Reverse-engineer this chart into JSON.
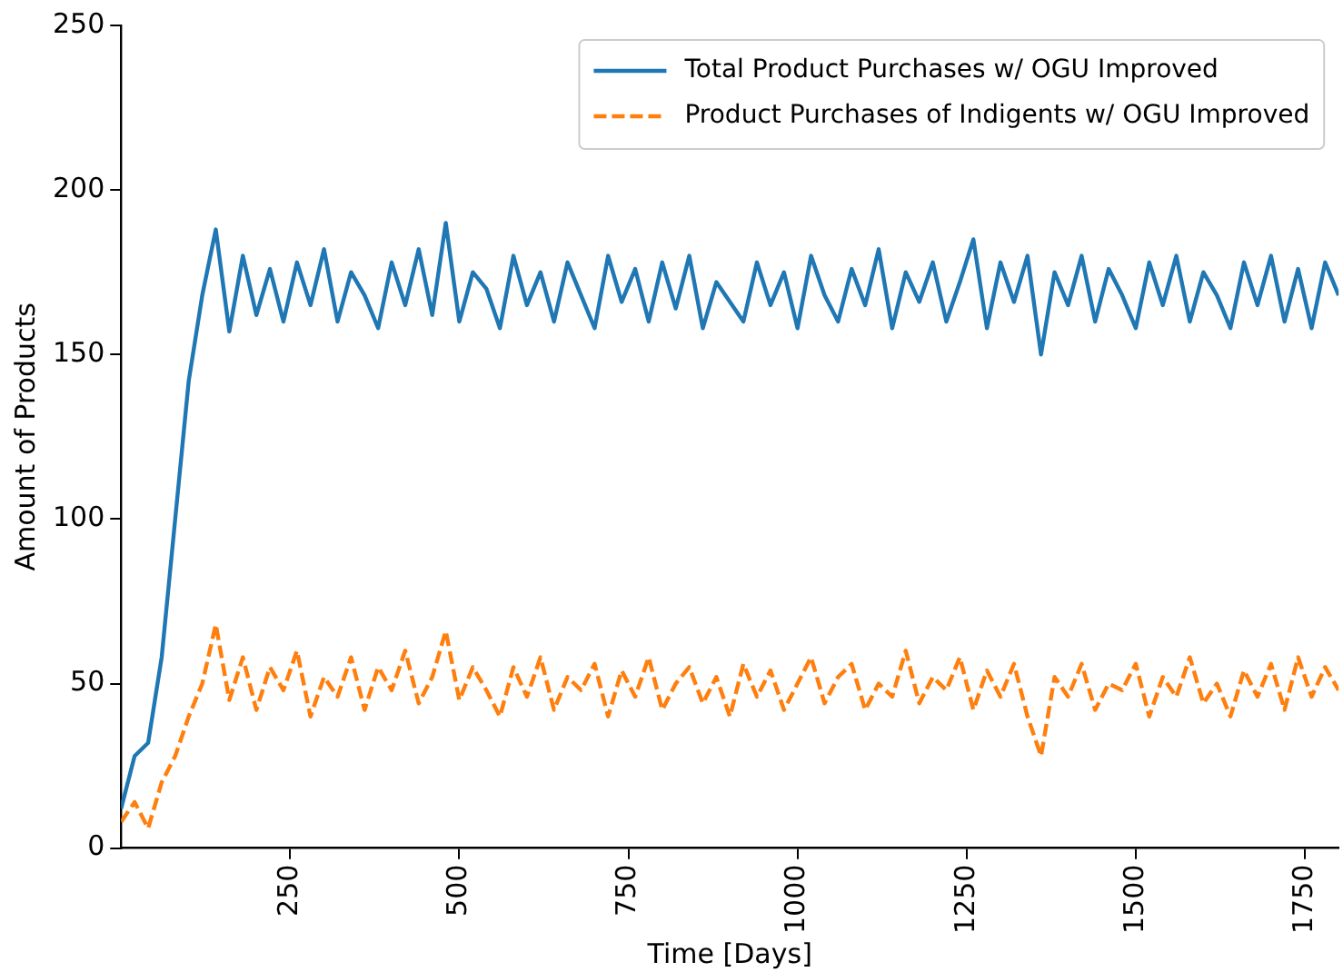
{
  "chart_data": {
    "type": "line",
    "xlabel": "Time [Days]",
    "ylabel": "Amount of Products",
    "x": [
      0,
      20,
      40,
      60,
      80,
      100,
      120,
      140,
      160,
      180,
      200,
      220,
      240,
      260,
      280,
      300,
      320,
      340,
      360,
      380,
      400,
      420,
      440,
      460,
      480,
      500,
      520,
      540,
      560,
      580,
      600,
      620,
      640,
      660,
      680,
      700,
      720,
      740,
      760,
      780,
      800,
      820,
      840,
      860,
      880,
      900,
      920,
      940,
      960,
      980,
      1000,
      1020,
      1040,
      1060,
      1080,
      1100,
      1120,
      1140,
      1160,
      1180,
      1200,
      1220,
      1240,
      1260,
      1280,
      1300,
      1320,
      1340,
      1360,
      1380,
      1400,
      1420,
      1440,
      1460,
      1480,
      1500,
      1520,
      1540,
      1560,
      1580,
      1600,
      1620,
      1640,
      1660,
      1680,
      1700,
      1720,
      1740,
      1760,
      1780,
      1800
    ],
    "series": [
      {
        "name": "Total Product Purchases w/ OGU Improved",
        "color": "#1f77b4",
        "line_style": "solid",
        "values": [
          12,
          28,
          32,
          58,
          100,
          142,
          168,
          188,
          157,
          180,
          162,
          176,
          160,
          178,
          165,
          182,
          160,
          175,
          168,
          158,
          178,
          165,
          182,
          162,
          190,
          160,
          175,
          170,
          158,
          180,
          165,
          175,
          160,
          178,
          168,
          158,
          180,
          166,
          176,
          160,
          178,
          164,
          180,
          158,
          172,
          166,
          160,
          178,
          165,
          175,
          158,
          180,
          168,
          160,
          176,
          165,
          182,
          158,
          175,
          166,
          178,
          160,
          172,
          185,
          158,
          178,
          166,
          180,
          150,
          175,
          165,
          180,
          160,
          176,
          168,
          158,
          178,
          165,
          180,
          160,
          175,
          168,
          158,
          178,
          165,
          180,
          160,
          176,
          158,
          178,
          168
        ]
      },
      {
        "name": "Product Purchases of Indigents w/ OGU Improved",
        "color": "#ff7f0e",
        "line_style": "dashed",
        "values": [
          8,
          14,
          6,
          20,
          28,
          40,
          50,
          68,
          45,
          58,
          42,
          55,
          48,
          60,
          40,
          52,
          46,
          58,
          42,
          55,
          48,
          60,
          44,
          52,
          66,
          45,
          55,
          48,
          40,
          55,
          46,
          58,
          42,
          52,
          48,
          56,
          40,
          54,
          46,
          58,
          42,
          50,
          55,
          44,
          52,
          40,
          56,
          46,
          54,
          42,
          50,
          58,
          44,
          52,
          56,
          42,
          50,
          46,
          60,
          44,
          52,
          48,
          58,
          42,
          54,
          46,
          56,
          40,
          28,
          52,
          46,
          56,
          42,
          50,
          48,
          56,
          40,
          52,
          46,
          58,
          44,
          50,
          40,
          54,
          46,
          56,
          42,
          58,
          46,
          55,
          48
        ]
      }
    ],
    "xlim": [
      0,
      1800
    ],
    "xticks": [
      250,
      500,
      750,
      1000,
      1250,
      1500,
      1750
    ],
    "ylim": [
      0,
      250
    ],
    "yticks": [
      0,
      50,
      100,
      150,
      200,
      250
    ],
    "grid": false,
    "legend": "top right",
    "marker": "none"
  }
}
